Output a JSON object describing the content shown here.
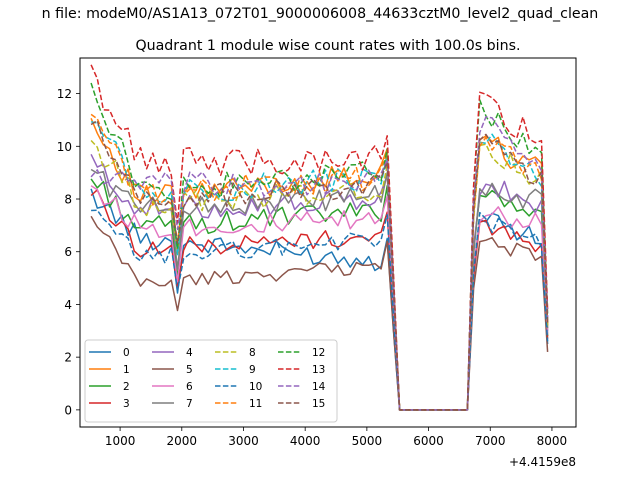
{
  "chart_data": {
    "type": "line",
    "suptitle": "n file: modeM0/AS1A13_072T01_9000006008_44633cztM0_level2_quad_clean",
    "title": "Quadrant 1 module wise count rates with 100.0s bins.",
    "xlabel": "",
    "ylabel": "",
    "x_offset_label": "+4.4159e8",
    "xlim": [
      350,
      8390
    ],
    "ylim": [
      -0.65,
      13.35
    ],
    "xticks": [
      1000,
      2000,
      3000,
      4000,
      5000,
      6000,
      7000,
      8000
    ],
    "xtick_labels": [
      "1000",
      "2000",
      "3000",
      "4000",
      "5000",
      "6000",
      "7000",
      "8000"
    ],
    "yticks": [
      0,
      2,
      4,
      6,
      8,
      10,
      12
    ],
    "ytick_labels": [
      "0",
      "2",
      "4",
      "6",
      "8",
      "10",
      "12"
    ],
    "grid": false,
    "legend_position": "lower-left",
    "legend_columns": 4,
    "segments": [
      {
        "name": "segment-1",
        "x_start": 530,
        "x_step": 100,
        "count": 50
      },
      {
        "name": "gap",
        "x": [
          5530,
          5630,
          5730,
          5830,
          5930,
          6030,
          6130,
          6230,
          6330,
          6430,
          6530,
          6630
        ],
        "value": 0
      },
      {
        "name": "segment-2",
        "x_start": 6730,
        "x_step": 100,
        "count": 13
      }
    ],
    "series": [
      {
        "name": "0",
        "color": "#1f77b4",
        "dash": "solid",
        "start": 8.2,
        "base": 6.5,
        "end": 5.6,
        "after_start": 7.4,
        "after_base": 6.5,
        "after_end": 2.5
      },
      {
        "name": "1",
        "color": "#ff7f0e",
        "dash": "solid",
        "start": 11.0,
        "base": 8.0,
        "end": 9.0,
        "after_start": 10.4,
        "after_base": 9.0,
        "after_end": 3.2
      },
      {
        "name": "2",
        "color": "#2ca02c",
        "dash": "solid",
        "start": 8.8,
        "base": 6.9,
        "end": 7.6,
        "after_start": 8.4,
        "after_base": 7.2,
        "after_end": 2.8
      },
      {
        "name": "3",
        "color": "#d62728",
        "dash": "solid",
        "start": 8.3,
        "base": 6.1,
        "end": 6.6,
        "after_start": 7.0,
        "after_base": 6.2,
        "after_end": 2.7
      },
      {
        "name": "4",
        "color": "#9467bd",
        "dash": "solid",
        "start": 9.4,
        "base": 7.6,
        "end": 8.0,
        "after_start": 8.6,
        "after_base": 7.8,
        "after_end": 3.0
      },
      {
        "name": "5",
        "color": "#8c564b",
        "dash": "solid",
        "start": 7.2,
        "base": 4.8,
        "end": 5.5,
        "after_start": 6.4,
        "after_base": 5.9,
        "after_end": 2.2
      },
      {
        "name": "6",
        "color": "#e377c2",
        "dash": "solid",
        "start": 8.5,
        "base": 6.9,
        "end": 7.2,
        "after_start": 7.6,
        "after_base": 7.0,
        "after_end": 2.9
      },
      {
        "name": "7",
        "color": "#7f7f7f",
        "dash": "solid",
        "start": 9.1,
        "base": 7.6,
        "end": 8.1,
        "after_start": 8.2,
        "after_base": 8.0,
        "after_end": 3.1
      },
      {
        "name": "8",
        "color": "#bcbd22",
        "dash": "dashed",
        "start": 10.2,
        "base": 7.8,
        "end": 8.4,
        "after_start": 10.0,
        "after_base": 8.7,
        "after_end": 3.2
      },
      {
        "name": "9",
        "color": "#17becf",
        "dash": "dashed",
        "start": 11.4,
        "base": 8.2,
        "end": 8.8,
        "after_start": 10.8,
        "after_base": 8.9,
        "after_end": 3.4
      },
      {
        "name": "10",
        "color": "#1f77b4",
        "dash": "dashed",
        "start": 7.5,
        "base": 5.8,
        "end": 6.5,
        "after_start": 7.2,
        "after_base": 6.5,
        "after_end": 2.6
      },
      {
        "name": "11",
        "color": "#ff7f0e",
        "dash": "dashed",
        "start": 11.1,
        "base": 8.2,
        "end": 8.8,
        "after_start": 10.3,
        "after_base": 8.9,
        "after_end": 3.3
      },
      {
        "name": "12",
        "color": "#2ca02c",
        "dash": "dashed",
        "start": 12.5,
        "base": 8.3,
        "end": 9.0,
        "after_start": 11.6,
        "after_base": 9.4,
        "after_end": 3.6
      },
      {
        "name": "13",
        "color": "#d62728",
        "dash": "dashed",
        "start": 12.7,
        "base": 9.4,
        "end": 9.5,
        "after_start": 11.8,
        "after_base": 10.3,
        "after_end": 3.8
      },
      {
        "name": "14",
        "color": "#9467bd",
        "dash": "dashed",
        "start": 9.0,
        "base": 8.5,
        "end": 8.6,
        "after_start": 11.0,
        "after_base": 9.5,
        "after_end": 3.5
      },
      {
        "name": "15",
        "color": "#8c564b",
        "dash": "dashed",
        "start": 10.9,
        "base": 8.0,
        "end": 8.5,
        "after_start": 10.5,
        "after_base": 8.6,
        "after_end": 3.3
      }
    ]
  }
}
